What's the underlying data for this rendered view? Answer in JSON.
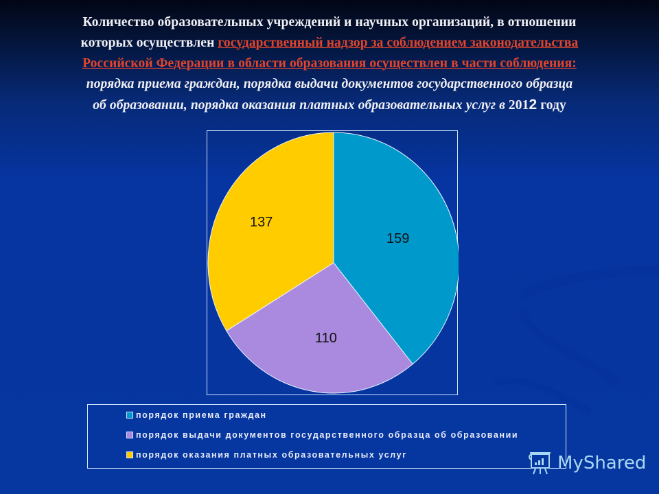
{
  "title": {
    "line1": "Количество образовательных учреждений и научных организаций, в отношении",
    "line2_prefix": "которых осуществлен ",
    "line2_link": "государственный надзор за соблюдением законодательства",
    "line3_link": "Российской Федерации в области образования осуществлен в части соблюдения:",
    "line4": "порядка приема граждан, порядка выдачи документов государственного образца",
    "line5_prefix": "об образовании, порядка оказания платных образовательных услуг в ",
    "line5_year_a": "201",
    "line5_year_b": "2",
    "line5_suffix": " году"
  },
  "colors": {
    "slice_admission": "#0099cc",
    "slice_documents": "#a98ade",
    "slice_paid": "#ffcc00",
    "link_red": "#e0452c",
    "background": "#0636a0"
  },
  "chart_data": {
    "type": "pie",
    "title": "Количество образовательных учреждений и научных организаций, в отношении которых осуществлен государственный надзор ... в 2012 году",
    "categories": [
      "порядок приема граждан",
      "порядок выдачи документов государственного образца об образовании",
      "порядок оказания платных образовательных услуг"
    ],
    "values": [
      159,
      110,
      137
    ],
    "colors": [
      "#0099cc",
      "#a98ade",
      "#ffcc00"
    ],
    "start_angle": "12 o'clock, clockwise",
    "legend_position": "bottom",
    "data_labels": [
      "159",
      "110",
      "137"
    ]
  },
  "slice_labels": {
    "admission": "159",
    "documents": "110",
    "paid": "137"
  },
  "legend": {
    "items": [
      {
        "label": "порядок приема граждан",
        "color": "#0099cc"
      },
      {
        "label": "порядок выдачи документов государственного образца об образовании",
        "color": "#a98ade"
      },
      {
        "label": "порядок оказания платных образовательных услуг",
        "color": "#ffcc00"
      }
    ]
  },
  "watermark": {
    "text": "MyShared",
    "icon": "presentation-board-icon"
  }
}
